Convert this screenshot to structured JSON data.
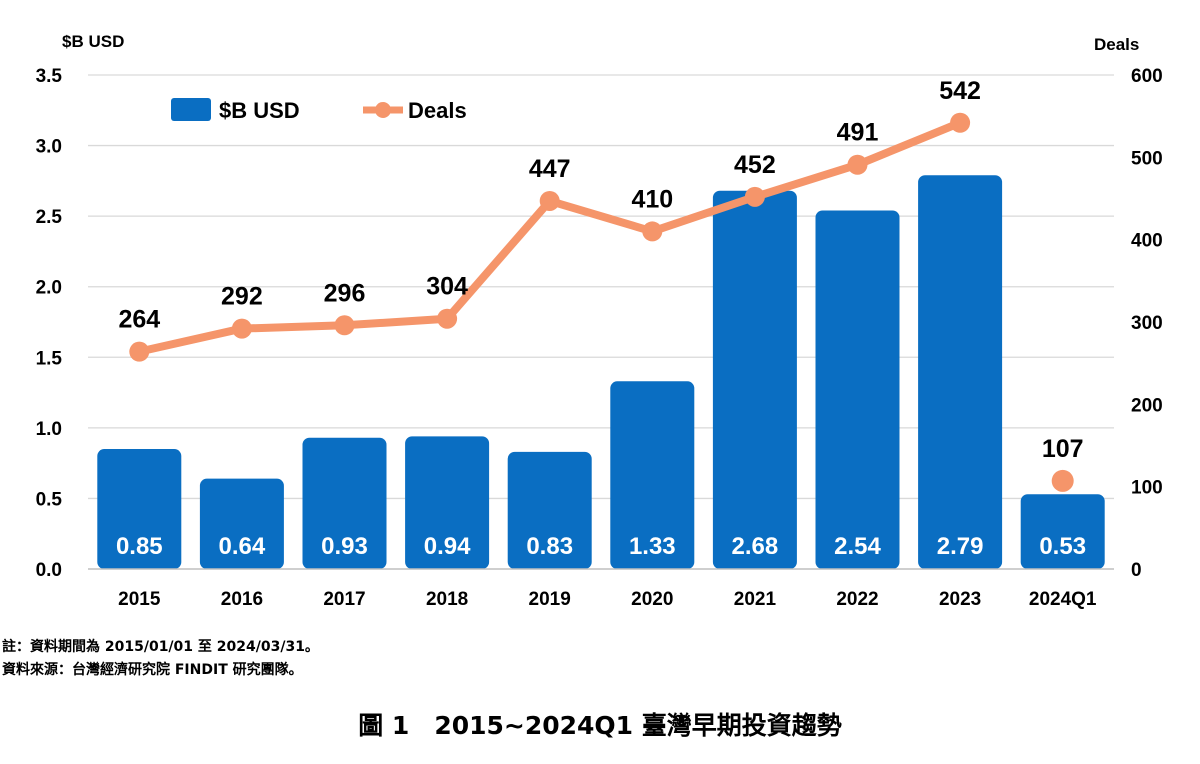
{
  "chart_data": {
    "type": "bar",
    "categories": [
      "2015",
      "2016",
      "2017",
      "2018",
      "2019",
      "2020",
      "2021",
      "2022",
      "2023",
      "2024Q1"
    ],
    "series": [
      {
        "name": "$B USD",
        "type": "bar",
        "axis": "left",
        "color": "#0A6EC2",
        "values": [
          0.85,
          0.64,
          0.93,
          0.94,
          0.83,
          1.33,
          2.68,
          2.54,
          2.79,
          0.53
        ]
      },
      {
        "name": "Deals",
        "type": "line",
        "axis": "right",
        "color": "#F5956A",
        "values": [
          264,
          292,
          296,
          304,
          447,
          410,
          452,
          491,
          542,
          107
        ],
        "last_point_standalone": true
      }
    ],
    "ylabel_left": "$B USD",
    "ylabel_right": "Deals",
    "ylim_left": [
      0,
      3.5
    ],
    "ylim_right": [
      0,
      600
    ],
    "yticks_left": [
      "0.0",
      "0.5",
      "1.0",
      "1.5",
      "2.0",
      "2.5",
      "3.0",
      "3.5"
    ],
    "yticks_right": [
      "0",
      "100",
      "200",
      "300",
      "400",
      "500",
      "600"
    ],
    "grid": true,
    "legend_placement": "top-left"
  },
  "notes": {
    "period": "註：資料期間為 2015/01/01 至 2024/03/31。",
    "source": "資料來源：台灣經濟研究院 FINDIT 研究團隊。"
  },
  "figure_title": "圖 1　2015~2024Q1 臺灣早期投資趨勢"
}
